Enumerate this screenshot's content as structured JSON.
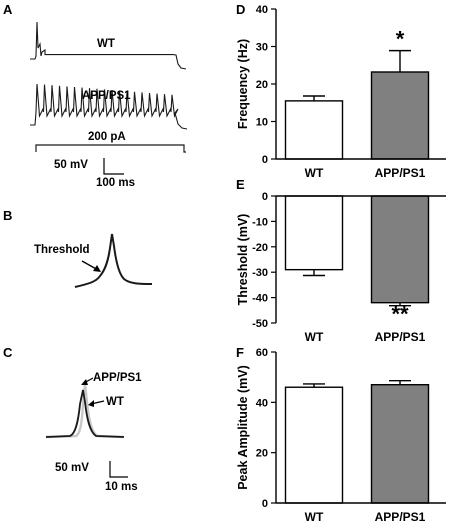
{
  "panels": {
    "A": {
      "label": "A",
      "wt_label": "WT",
      "app_label": "APP/PS1",
      "current_label": "200 pA",
      "scale_v": "50 mV",
      "scale_t": "100 ms"
    },
    "B": {
      "label": "B",
      "threshold_label": "Threshold"
    },
    "C": {
      "label": "C",
      "app_label": "APP/PS1",
      "wt_label": "WT",
      "scale_v": "50 mV",
      "scale_t": "10 ms"
    }
  },
  "colors": {
    "wt_bar": "#ffffff",
    "app_bar": "#808080",
    "wt_trace": "#1a1a1a",
    "app_trace_c": "#c8c8c8"
  },
  "chart_data": [
    {
      "panel": "D",
      "type": "bar",
      "categories": [
        "WT",
        "APP/PS1"
      ],
      "values": [
        15.5,
        23.2
      ],
      "errors": [
        1.3,
        5.7
      ],
      "ylabel": "Frequency (Hz)",
      "ylim": [
        0,
        40
      ],
      "yticks": [
        "0",
        "10",
        "20",
        "30",
        "40"
      ],
      "significance": [
        "",
        "*"
      ]
    },
    {
      "panel": "E",
      "type": "bar",
      "categories": [
        "WT",
        "APP/PS1"
      ],
      "values": [
        -29,
        -42
      ],
      "errors": [
        2.3,
        1.2
      ],
      "ylabel": "Threshold (mV)",
      "ylim": [
        -50,
        0
      ],
      "yticks": [
        "0",
        "-10",
        "-20",
        "-30",
        "-40",
        "-50"
      ],
      "significance": [
        "",
        "**"
      ]
    },
    {
      "panel": "F",
      "type": "bar",
      "categories": [
        "WT",
        "APP/PS1"
      ],
      "values": [
        46,
        47
      ],
      "errors": [
        1.3,
        1.6
      ],
      "ylabel": "Peak Amplitude (mV)",
      "ylim": [
        0,
        60
      ],
      "yticks": [
        "0",
        "20",
        "40",
        "60"
      ],
      "significance": [
        "",
        ""
      ]
    }
  ]
}
